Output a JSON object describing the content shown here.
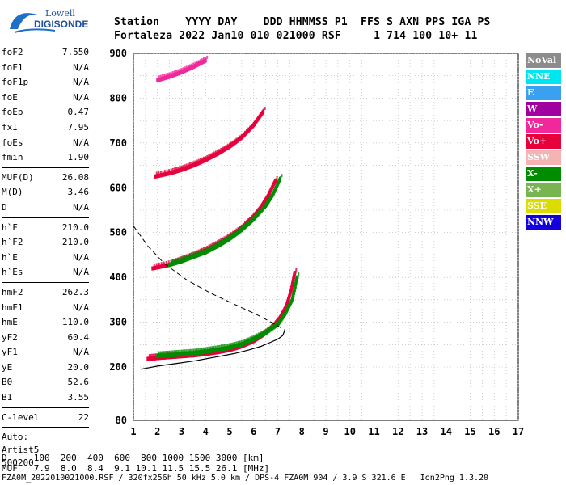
{
  "logo": {
    "line1": "Lowell",
    "line2": "DIGISONDE"
  },
  "header": {
    "labels": "Station    YYYY DAY    DDD HHMMSS P1  FFS S AXN PPS IGA PS",
    "values": "Fortaleza 2022 Jan10 010 021000 RSF     1 714 100 10+ 11"
  },
  "params_group1": [
    {
      "name": "foF2",
      "value": "7.550"
    },
    {
      "name": "foF1",
      "value": "N/A"
    },
    {
      "name": "foF1p",
      "value": "N/A"
    },
    {
      "name": "foE",
      "value": "N/A"
    },
    {
      "name": "foEp",
      "value": "0.47"
    },
    {
      "name": "fxI",
      "value": "7.95"
    },
    {
      "name": "foEs",
      "value": "N/A"
    },
    {
      "name": "fmin",
      "value": "1.90"
    }
  ],
  "params_group2": [
    {
      "name": "MUF(D)",
      "value": "26.08"
    },
    {
      "name": "M(D)",
      "value": "3.46"
    },
    {
      "name": "D",
      "value": "N/A"
    }
  ],
  "params_group3": [
    {
      "name": "h`F",
      "value": "210.0"
    },
    {
      "name": "h`F2",
      "value": "210.0"
    },
    {
      "name": "h`E",
      "value": "N/A"
    },
    {
      "name": "h`Es",
      "value": "N/A"
    }
  ],
  "params_group4": [
    {
      "name": "hmF2",
      "value": "262.3"
    },
    {
      "name": "hmF1",
      "value": "N/A"
    },
    {
      "name": "hmE",
      "value": "110.0"
    },
    {
      "name": "yF2",
      "value": "60.4"
    },
    {
      "name": "yF1",
      "value": "N/A"
    },
    {
      "name": "yE",
      "value": "20.0"
    },
    {
      "name": "B0",
      "value": "52.6"
    },
    {
      "name": "B1",
      "value": "3.55"
    }
  ],
  "params_group5": [
    {
      "name": "C-level",
      "value": "22"
    }
  ],
  "autoscaling": [
    "Auto:",
    "Artist5",
    "500200"
  ],
  "legend": [
    {
      "label": "NoVal",
      "color": "#8c8c8c"
    },
    {
      "label": "NNE",
      "color": "#00e6f0"
    },
    {
      "label": "E",
      "color": "#3ca0f0"
    },
    {
      "label": "W",
      "color": "#a000a0"
    },
    {
      "label": "Vo-",
      "color": "#f0289c"
    },
    {
      "label": "Vo+",
      "color": "#e6003c"
    },
    {
      "label": "SSW",
      "color": "#f4b4b4"
    },
    {
      "label": "X-",
      "color": "#008c00"
    },
    {
      "label": "X+",
      "color": "#78b450"
    },
    {
      "label": "SSE",
      "color": "#dcdc00"
    },
    {
      "label": "NNW",
      "color": "#1400dc"
    }
  ],
  "footer": {
    "d_row": "D     100  200  400  600  800 1000 1500 3000 [km]",
    "muf_row": "MUF   7.9  8.0  8.4  9.1 10.1 11.5 15.5 26.1 [MHz]",
    "file_row": "FZA0M_2022010021000.RSF / 320fx256h 50 kHz 5.0 km / DPS-4 FZA0M 904 / 3.9 S 321.6 E   Ion2Png 1.3.20"
  },
  "chart_data": {
    "type": "scatter",
    "xlim": [
      1,
      17
    ],
    "ylim": [
      80,
      900
    ],
    "x_ticks": [
      1,
      2,
      3,
      4,
      5,
      6,
      7,
      8,
      9,
      10,
      11,
      12,
      13,
      14,
      15,
      16,
      17
    ],
    "y_ticks": [
      80,
      200,
      300,
      400,
      500,
      600,
      700,
      800,
      900
    ],
    "grid": true,
    "traces": [
      {
        "name": "Vo+",
        "color": "#e6003c",
        "x": [
          1.6,
          2.0,
          2.5,
          3.0,
          3.5,
          4.0,
          4.5,
          5.0,
          5.5,
          6.0,
          6.4,
          6.8,
          7.1,
          7.35,
          7.55,
          7.7
        ],
        "y": [
          218,
          220,
          222,
          224,
          226,
          229,
          233,
          238,
          246,
          258,
          272,
          290,
          310,
          335,
          370,
          410
        ]
      },
      {
        "name": "X-",
        "color": "#008c00",
        "x": [
          2.0,
          2.5,
          3.0,
          3.5,
          4.0,
          4.5,
          5.0,
          5.5,
          6.0,
          6.5,
          7.0,
          7.3,
          7.6,
          7.8
        ],
        "y": [
          224,
          226,
          228,
          230,
          234,
          238,
          243,
          250,
          262,
          276,
          295,
          318,
          350,
          400
        ]
      },
      {
        "name": "Vo+",
        "color": "#e6003c",
        "x": [
          1.8,
          2.5,
          3.0,
          3.5,
          4.0,
          4.5,
          5.0,
          5.5,
          6.0,
          6.3,
          6.6,
          6.9
        ],
        "y": [
          420,
          428,
          438,
          448,
          460,
          474,
          490,
          510,
          536,
          556,
          582,
          615
        ]
      },
      {
        "name": "X-",
        "color": "#008c00",
        "x": [
          2.5,
          3.0,
          3.5,
          4.0,
          4.5,
          5.0,
          5.5,
          6.0,
          6.5,
          6.8,
          7.1
        ],
        "y": [
          428,
          436,
          446,
          456,
          470,
          486,
          506,
          530,
          560,
          585,
          620
        ]
      },
      {
        "name": "Vo+",
        "color": "#e6003c",
        "x": [
          1.9,
          2.5,
          3.0,
          3.5,
          4.0,
          4.5,
          5.0,
          5.5,
          6.0,
          6.4
        ],
        "y": [
          625,
          632,
          640,
          650,
          662,
          676,
          692,
          712,
          740,
          770
        ]
      },
      {
        "name": "Vo-",
        "color": "#f0289c",
        "x": [
          2.0,
          2.5,
          3.0,
          3.5,
          4.0
        ],
        "y": [
          840,
          848,
          858,
          870,
          884
        ]
      }
    ],
    "profile": {
      "name": "profile",
      "color": "#000000",
      "x": [
        1.3,
        2.0,
        2.8,
        3.6,
        4.4,
        5.2,
        5.8,
        6.3,
        6.7,
        7.0,
        7.2,
        7.3
      ],
      "y": [
        195,
        202,
        208,
        214,
        222,
        230,
        238,
        246,
        255,
        262,
        270,
        282
      ]
    },
    "extrapolation": {
      "name": "extrapolation",
      "color": "#000000",
      "x": [
        1.0,
        1.6,
        2.3,
        3.2,
        4.2,
        5.2,
        6.2,
        6.9,
        7.3
      ],
      "y": [
        515,
        470,
        430,
        395,
        365,
        340,
        315,
        295,
        282
      ]
    }
  }
}
